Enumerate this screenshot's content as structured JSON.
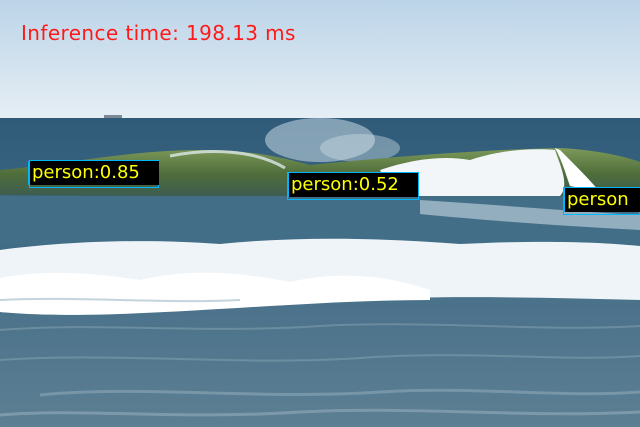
{
  "overlay": {
    "inference_text": "Inference time: 198.13 ms",
    "inference_color": "#ff1a1a"
  },
  "detections": [
    {
      "label": "person:0.85",
      "box_color": "#00b7ff"
    },
    {
      "label": "person:0.52",
      "box_color": "#00b7ff"
    },
    {
      "label": "person",
      "box_color": "#00b7ff"
    }
  ],
  "scene": {
    "sky_color": "#cfe1ee",
    "sea_color": "#3e6b84",
    "wave_color": "#5f7a3e",
    "foam_color": "#eef4f8"
  }
}
